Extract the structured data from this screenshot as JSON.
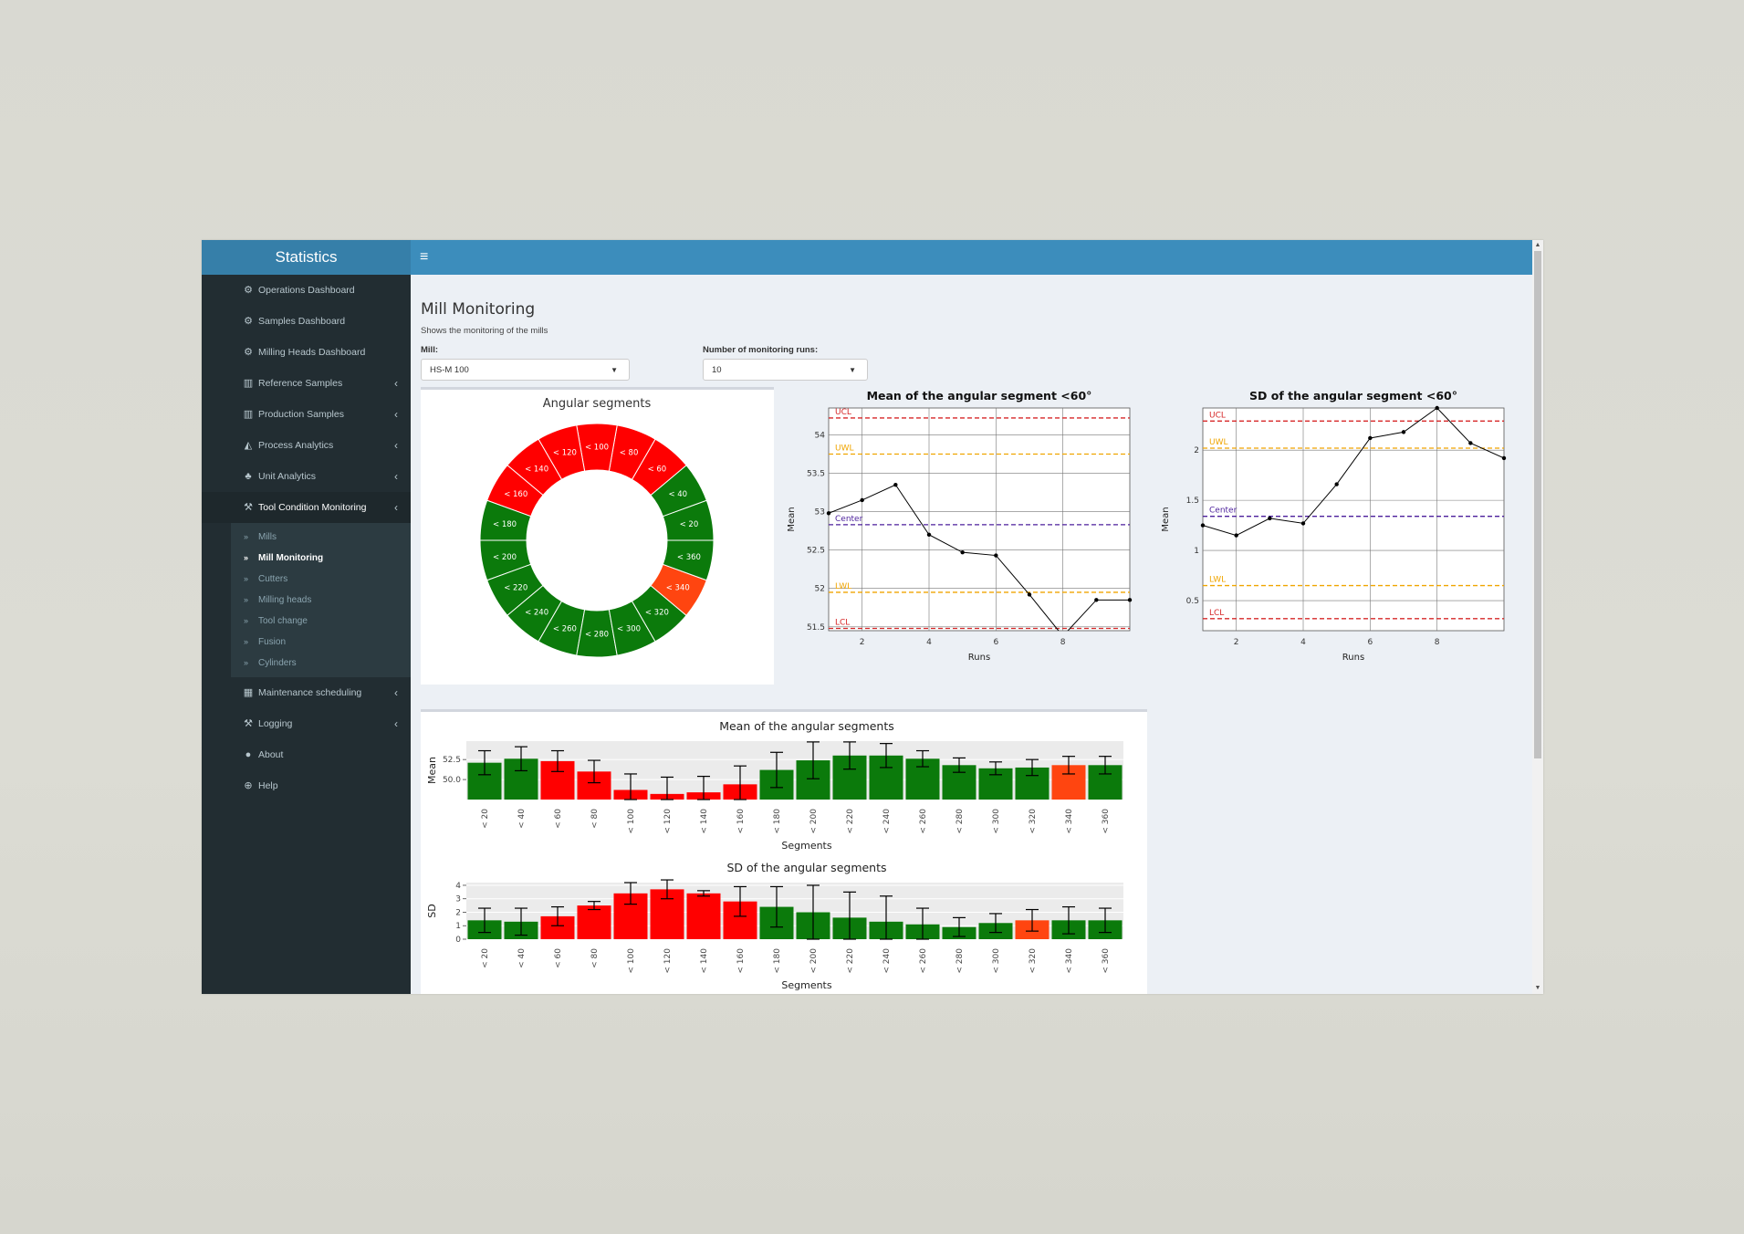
{
  "brand": "Statistics",
  "hamburger": "≡",
  "sidebar": {
    "items": [
      {
        "label": "Operations Dashboard",
        "icon": "dashboard-icon",
        "glyph": "⚙",
        "chevron": false
      },
      {
        "label": "Samples Dashboard",
        "icon": "dashboard-icon",
        "glyph": "⚙",
        "chevron": false
      },
      {
        "label": "Milling Heads Dashboard",
        "icon": "dashboard-icon",
        "glyph": "⚙",
        "chevron": false
      },
      {
        "label": "Reference Samples",
        "icon": "bar-chart-icon",
        "glyph": "▥",
        "chevron": true
      },
      {
        "label": "Production Samples",
        "icon": "bar-chart-icon",
        "glyph": "▥",
        "chevron": true
      },
      {
        "label": "Process Analytics",
        "icon": "area-chart-icon",
        "glyph": "◭",
        "chevron": true
      },
      {
        "label": "Unit Analytics",
        "icon": "sitemap-icon",
        "glyph": "♣",
        "chevron": true
      },
      {
        "label": "Tool Condition Monitoring",
        "icon": "wrench-icon",
        "glyph": "⚒",
        "chevron": true,
        "open": true
      },
      {
        "label": "Maintenance scheduling",
        "icon": "calendar-icon",
        "glyph": "▦",
        "chevron": true
      },
      {
        "label": "Logging",
        "icon": "wrench-icon",
        "glyph": "⚒",
        "chevron": true
      },
      {
        "label": "About",
        "icon": "info-icon",
        "glyph": "●",
        "chevron": false
      },
      {
        "label": "Help",
        "icon": "globe-icon",
        "glyph": "⊕",
        "chevron": false
      }
    ],
    "chevron_glyph": "‹",
    "subitems": [
      {
        "label": "Mills",
        "active": false
      },
      {
        "label": "Mill Monitoring",
        "active": true
      },
      {
        "label": "Cutters",
        "active": false
      },
      {
        "label": "Milling heads",
        "active": false
      },
      {
        "label": "Tool change",
        "active": false
      },
      {
        "label": "Fusion",
        "active": false
      },
      {
        "label": "Cylinders",
        "active": false
      }
    ],
    "sub_glyph": "»"
  },
  "page": {
    "title": "Mill Monitoring",
    "subtitle": "Shows the monitoring of the mills",
    "mill_label": "Mill:",
    "mill_value": "HS-M 100",
    "runs_label": "Number of monitoring runs:",
    "runs_value": "10"
  },
  "colors": {
    "green": "#0b7a0b",
    "red": "#ff0000",
    "orange": "#ff4510",
    "ucl": "#d62728",
    "uwl": "#f0a500",
    "center": "#4b1f9b"
  },
  "chart_data": [
    {
      "type": "pie",
      "title": "Angular segments",
      "segments": [
        "< 20",
        "< 40",
        "< 60",
        "< 80",
        "< 100",
        "< 120",
        "< 140",
        "< 160",
        "< 180",
        "< 200",
        "< 220",
        "< 240",
        "< 260",
        "< 280",
        "< 300",
        "< 320",
        "< 340",
        "< 360"
      ],
      "status": [
        "green",
        "green",
        "red",
        "red",
        "red",
        "red",
        "red",
        "red",
        "green",
        "green",
        "green",
        "green",
        "green",
        "green",
        "green",
        "green",
        "orange",
        "green"
      ]
    },
    {
      "type": "line",
      "title": "Mean of the angular segment <60°",
      "xlabel": "Runs",
      "ylabel": "Mean",
      "x": [
        1,
        2,
        3,
        4,
        5,
        6,
        7,
        8,
        9,
        10
      ],
      "y": [
        52.98,
        53.15,
        53.35,
        52.7,
        52.47,
        52.43,
        51.92,
        51.38,
        51.85,
        51.85
      ],
      "xticks": [
        2,
        4,
        6,
        8
      ],
      "yticks": [
        51.5,
        52,
        52.5,
        53,
        53.5,
        54
      ],
      "xlim": [
        1,
        10
      ],
      "ylim": [
        51.45,
        54.35
      ],
      "lines": [
        {
          "label": "UCL",
          "y": 54.22,
          "color": "#d62728"
        },
        {
          "label": "UWL",
          "y": 53.75,
          "color": "#f0a500"
        },
        {
          "label": "Center",
          "y": 52.83,
          "color": "#4b1f9b"
        },
        {
          "label": "LWL",
          "y": 51.95,
          "color": "#f0a500"
        },
        {
          "label": "LCL",
          "y": 51.48,
          "color": "#d62728"
        }
      ]
    },
    {
      "type": "line",
      "title": "SD of the angular segment <60°",
      "xlabel": "Runs",
      "ylabel": "Mean",
      "x": [
        1,
        2,
        3,
        4,
        5,
        6,
        7,
        8,
        9,
        10
      ],
      "y": [
        1.25,
        1.15,
        1.32,
        1.27,
        1.66,
        2.12,
        2.18,
        2.42,
        2.07,
        1.92
      ],
      "xticks": [
        2,
        4,
        6,
        8
      ],
      "yticks": [
        0.5,
        1,
        1.5,
        2
      ],
      "xlim": [
        1,
        10
      ],
      "ylim": [
        0.2,
        2.42
      ],
      "lines": [
        {
          "label": "UCL",
          "y": 2.29,
          "color": "#d62728"
        },
        {
          "label": "UWL",
          "y": 2.02,
          "color": "#f0a500"
        },
        {
          "label": "Center",
          "y": 1.34,
          "color": "#4b1f9b"
        },
        {
          "label": "LWL",
          "y": 0.65,
          "color": "#f0a500"
        },
        {
          "label": "LCL",
          "y": 0.32,
          "color": "#d62728"
        }
      ]
    },
    {
      "type": "bar",
      "title": "Mean of the angular segments",
      "xlabel": "Segments",
      "ylabel": "Mean",
      "categories": [
        "< 20",
        "< 40",
        "< 60",
        "< 80",
        "< 100",
        "< 120",
        "< 140",
        "< 160",
        "< 180",
        "< 200",
        "< 220",
        "< 240",
        "< 260",
        "< 280",
        "< 300",
        "< 320",
        "< 340",
        "< 360"
      ],
      "values": [
        52.1,
        52.6,
        52.3,
        51.0,
        48.7,
        48.2,
        48.4,
        49.4,
        51.2,
        52.4,
        53.0,
        53.0,
        52.6,
        51.8,
        51.4,
        51.5,
        51.8,
        51.8
      ],
      "errors": [
        1.5,
        1.5,
        1.3,
        1.4,
        2.0,
        2.1,
        2.0,
        2.3,
        2.2,
        2.3,
        1.7,
        1.5,
        1.0,
        0.9,
        0.8,
        1.0,
        1.1,
        1.1
      ],
      "status": [
        "green",
        "green",
        "red",
        "red",
        "red",
        "red",
        "red",
        "red",
        "green",
        "green",
        "green",
        "green",
        "green",
        "green",
        "green",
        "green",
        "orange",
        "green"
      ],
      "yticks": [
        50.0,
        52.5
      ],
      "ytick_labels": [
        "50.0",
        "52.5"
      ],
      "ylim": [
        47.5,
        54.8
      ]
    },
    {
      "type": "bar",
      "title": "SD of the angular segments",
      "xlabel": "Segments",
      "ylabel": "SD",
      "categories": [
        "< 20",
        "< 40",
        "< 60",
        "< 80",
        "< 100",
        "< 120",
        "< 140",
        "< 160",
        "< 180",
        "< 200",
        "< 220",
        "< 240",
        "< 260",
        "< 280",
        "< 300",
        "< 320",
        "< 340",
        "< 360"
      ],
      "values": [
        1.4,
        1.3,
        1.7,
        2.5,
        3.4,
        3.7,
        3.4,
        2.8,
        2.4,
        2.0,
        1.6,
        1.3,
        1.1,
        0.9,
        1.2,
        1.4,
        1.4,
        1.4
      ],
      "errors": [
        0.9,
        1.0,
        0.7,
        0.3,
        0.8,
        0.7,
        0.2,
        1.1,
        1.5,
        2.0,
        1.9,
        1.9,
        1.2,
        0.7,
        0.7,
        0.8,
        1.0,
        0.9
      ],
      "status": [
        "green",
        "green",
        "red",
        "red",
        "red",
        "red",
        "red",
        "red",
        "green",
        "green",
        "green",
        "green",
        "green",
        "green",
        "green",
        "orange",
        "green",
        "green"
      ],
      "yticks": [
        0,
        1,
        2,
        3,
        4
      ],
      "ytick_labels": [
        "0",
        "1",
        "2",
        "3",
        "4"
      ],
      "ylim": [
        0,
        4.2
      ]
    }
  ]
}
